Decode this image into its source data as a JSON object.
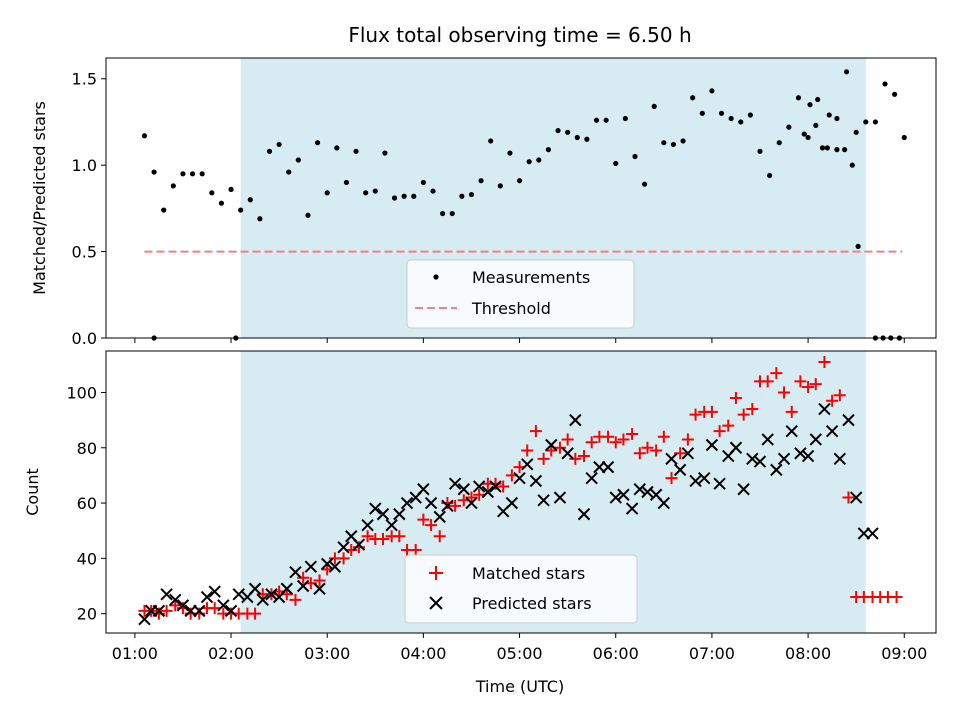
{
  "title": "Flux total observing time = 6.50 h",
  "x_axis": {
    "label": "Time (UTC)",
    "tick_hours": [
      1,
      2,
      3,
      4,
      5,
      6,
      7,
      8,
      9
    ],
    "tick_labels": [
      "01:00",
      "02:00",
      "03:00",
      "04:00",
      "05:00",
      "06:00",
      "07:00",
      "08:00",
      "09:00"
    ],
    "range_hours": [
      0.7,
      9.33
    ]
  },
  "colors": {
    "measurement": "#000000",
    "threshold": "#f08080",
    "matched": "#ff0000",
    "predicted": "#000000",
    "observing_window": "#add8e6"
  },
  "chart_data": [
    {
      "type": "scatter",
      "id": "ratio",
      "ylabel": "Matched/Predicted stars",
      "ylim": [
        0,
        1.62
      ],
      "yticks": [
        0,
        0.5,
        1.0,
        1.5
      ],
      "ytick_labels": [
        "0.0",
        "0.5",
        "1.0",
        "1.5"
      ],
      "observing_window_hours": [
        2.1,
        8.6
      ],
      "threshold": {
        "name": "Threshold",
        "value": 0.5,
        "x_range_hours": [
          1.1,
          8.98
        ]
      },
      "legend": {
        "placement": "lower center",
        "entries": [
          "Measurements",
          "Threshold"
        ]
      },
      "measurements": {
        "name": "Measurements",
        "x": [
          1.1,
          1.2,
          1.3,
          1.4,
          1.5,
          1.6,
          1.7,
          1.8,
          1.9,
          2.0,
          2.1,
          2.2,
          2.3,
          2.4,
          2.5,
          2.6,
          2.7,
          2.8,
          2.9,
          3.0,
          3.1,
          3.2,
          3.3,
          3.4,
          3.5,
          3.6,
          3.7,
          3.8,
          3.9,
          4.0,
          4.1,
          4.2,
          4.3,
          4.4,
          4.5,
          4.6,
          4.7,
          4.8,
          4.9,
          5.0,
          5.1,
          5.2,
          5.3,
          5.4,
          5.5,
          5.6,
          5.7,
          5.8,
          5.9,
          6.0,
          6.1,
          6.2,
          6.3,
          6.4,
          6.5,
          6.6,
          6.7,
          6.8,
          6.9,
          7.0,
          7.1,
          7.2,
          7.3,
          7.4,
          7.5,
          7.6,
          7.7,
          7.8,
          7.9,
          8.0,
          8.1,
          8.2,
          8.3,
          8.4,
          8.5,
          8.6,
          8.7,
          8.8,
          8.9,
          9.0
        ],
        "y": [
          1.17,
          0.96,
          0.74,
          0.88,
          0.95,
          0.95,
          0.95,
          0.84,
          0.78,
          0.86,
          0.74,
          0.8,
          0.69,
          1.08,
          1.12,
          0.96,
          1.03,
          0.71,
          1.13,
          0.84,
          1.1,
          0.9,
          1.08,
          0.84,
          0.85,
          1.07,
          0.81,
          0.82,
          0.82,
          0.9,
          0.85,
          0.72,
          0.72,
          0.82,
          0.83,
          0.91,
          1.14,
          0.88,
          1.07,
          0.91,
          1.02,
          1.03,
          1.09,
          1.2,
          1.19,
          1.16,
          1.15,
          1.26,
          1.26,
          1.01,
          1.27,
          1.05,
          0.89,
          1.34,
          1.13,
          1.12,
          1.14,
          1.39,
          1.3,
          1.43,
          1.3,
          1.27,
          1.25,
          1.29,
          1.08,
          0.94,
          1.13,
          1.22,
          1.39,
          1.16,
          1.38,
          1.1,
          1.09,
          1.54,
          1.19,
          1.25,
          1.25,
          1.47,
          1.41,
          1.16
        ],
        "extra_points": [
          [
            1.2,
            0.0
          ],
          [
            2.05,
            0.0
          ],
          [
            7.96,
            1.18
          ],
          [
            8.02,
            1.35
          ],
          [
            8.08,
            1.23
          ],
          [
            8.15,
            1.1
          ],
          [
            8.22,
            1.29
          ],
          [
            8.3,
            1.27
          ],
          [
            8.38,
            1.09
          ],
          [
            8.46,
            1.0
          ],
          [
            8.52,
            0.53
          ],
          [
            8.7,
            0.0
          ],
          [
            8.78,
            0.0
          ],
          [
            8.86,
            0.0
          ],
          [
            8.95,
            0.0
          ]
        ]
      }
    },
    {
      "type": "scatter",
      "id": "counts",
      "ylabel": "Count",
      "ylim": [
        13,
        115
      ],
      "yticks": [
        20,
        40,
        60,
        80,
        100
      ],
      "ytick_labels": [
        "20",
        "40",
        "60",
        "80",
        "100"
      ],
      "observing_window_hours": [
        2.1,
        8.6
      ],
      "legend": {
        "placement": "lower center",
        "entries": [
          "Matched stars",
          "Predicted stars"
        ]
      },
      "matched": {
        "name": "Matched stars",
        "x": [
          1.1,
          1.17,
          1.25,
          1.33,
          1.42,
          1.5,
          1.58,
          1.67,
          1.75,
          1.83,
          1.92,
          2.0,
          2.08,
          2.17,
          2.25,
          2.33,
          2.42,
          2.5,
          2.58,
          2.67,
          2.75,
          2.83,
          2.92,
          3.0,
          3.08,
          3.17,
          3.25,
          3.33,
          3.42,
          3.5,
          3.58,
          3.67,
          3.75,
          3.83,
          3.92,
          4.0,
          4.08,
          4.17,
          4.25,
          4.33,
          4.42,
          4.5,
          4.58,
          4.67,
          4.75,
          4.83,
          4.92,
          5.0,
          5.08,
          5.17,
          5.25,
          5.33,
          5.42,
          5.5,
          5.58,
          5.67,
          5.75,
          5.83,
          5.92,
          6.0,
          6.08,
          6.17,
          6.25,
          6.33,
          6.42,
          6.5,
          6.58,
          6.67,
          6.75,
          6.83,
          6.92,
          7.0,
          7.08,
          7.17,
          7.25,
          7.33,
          7.42,
          7.5,
          7.58,
          7.67,
          7.75,
          7.83,
          7.92,
          8.0,
          8.08,
          8.17,
          8.25,
          8.33,
          8.42,
          8.5,
          8.58,
          8.67,
          8.75,
          8.83,
          8.92
        ],
        "y": [
          21,
          21,
          20,
          21,
          23,
          22,
          20,
          20,
          22,
          22,
          20,
          20,
          20,
          20,
          20,
          27,
          27,
          28,
          27,
          25,
          33,
          31,
          32,
          36,
          40,
          40,
          43,
          44,
          48,
          47,
          47,
          48,
          48,
          43,
          43,
          54,
          52,
          48,
          60,
          59,
          61,
          62,
          63,
          67,
          67,
          66,
          70,
          73,
          79,
          86,
          76,
          79,
          80,
          83,
          76,
          77,
          82,
          84,
          84,
          82,
          83,
          85,
          78,
          80,
          79,
          84,
          69,
          78,
          83,
          92,
          93,
          93,
          86,
          88,
          98,
          92,
          94,
          104,
          104,
          107,
          100,
          93,
          104,
          102,
          103,
          111,
          97,
          99,
          62,
          26,
          26,
          26,
          26,
          26,
          26
        ]
      },
      "predicted": {
        "name": "Predicted stars",
        "x": [
          1.1,
          1.17,
          1.25,
          1.33,
          1.42,
          1.5,
          1.58,
          1.67,
          1.75,
          1.83,
          1.92,
          2.0,
          2.08,
          2.17,
          2.25,
          2.33,
          2.42,
          2.5,
          2.58,
          2.67,
          2.75,
          2.83,
          2.92,
          3.0,
          3.08,
          3.17,
          3.25,
          3.33,
          3.42,
          3.5,
          3.58,
          3.67,
          3.75,
          3.83,
          3.92,
          4.0,
          4.08,
          4.17,
          4.25,
          4.33,
          4.42,
          4.5,
          4.58,
          4.67,
          4.75,
          4.83,
          4.92,
          5.0,
          5.08,
          5.17,
          5.25,
          5.33,
          5.42,
          5.5,
          5.58,
          5.67,
          5.75,
          5.83,
          5.92,
          6.0,
          6.08,
          6.17,
          6.25,
          6.33,
          6.42,
          6.5,
          6.58,
          6.67,
          6.75,
          6.83,
          6.92,
          7.0,
          7.08,
          7.17,
          7.25,
          7.33,
          7.42,
          7.5,
          7.58,
          7.67,
          7.75,
          7.83,
          7.92,
          8.0,
          8.08,
          8.17,
          8.25,
          8.33,
          8.42,
          8.5,
          8.58,
          8.67
        ],
        "y": [
          18,
          21,
          21,
          27,
          25,
          23,
          21,
          21,
          26,
          28,
          23,
          21,
          27,
          26,
          29,
          25,
          27,
          26,
          29,
          35,
          30,
          37,
          29,
          38,
          37,
          44,
          48,
          45,
          52,
          58,
          56,
          52,
          56,
          60,
          62,
          65,
          60,
          55,
          59,
          67,
          65,
          60,
          66,
          64,
          66,
          57,
          60,
          69,
          74,
          68,
          61,
          81,
          62,
          78,
          90,
          56,
          69,
          73,
          73,
          62,
          63,
          58,
          65,
          64,
          63,
          60,
          76,
          72,
          78,
          68,
          69,
          81,
          67,
          77,
          80,
          65,
          76,
          75,
          83,
          72,
          76,
          86,
          78,
          77,
          83,
          94,
          86,
          76,
          90,
          62,
          49,
          49
        ]
      }
    }
  ]
}
